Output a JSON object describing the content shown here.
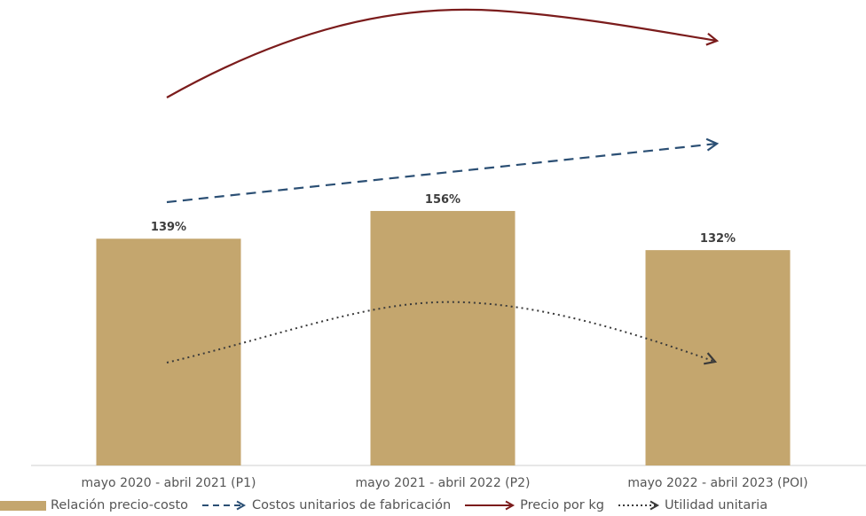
{
  "chart_data": {
    "type": "bar",
    "categories": [
      "mayo 2020 - abril 2021 (P1)",
      "mayo 2021 - abril 2022 (P2)",
      "mayo 2022 - abril 2023 (POI)"
    ],
    "series": [
      {
        "name": "Relación precio-costo",
        "type": "bar",
        "values": [
          139,
          156,
          132
        ],
        "labels": [
          "139%",
          "156%",
          "132%"
        ],
        "color": "#c4a66e"
      },
      {
        "name": "Costos unitarios de fabricación",
        "type": "trend-line",
        "style": "dashed",
        "color": "#2b4f74",
        "shape": "rising"
      },
      {
        "name": "Precio por kg",
        "type": "trend-line",
        "style": "solid",
        "color": "#7b1c1c",
        "shape": "rise-then-fall"
      },
      {
        "name": "Utilidad unitaria",
        "type": "trend-line",
        "style": "dotted",
        "color": "#3a3a3a",
        "shape": "rise-then-fall"
      }
    ],
    "title": "",
    "xlabel": "",
    "ylabel": "",
    "ylim": [
      0,
      180
    ],
    "grid": false,
    "legend_position": "bottom"
  },
  "colors": {
    "bar": "#c4a66e",
    "costs": "#2b4f74",
    "price": "#7b1c1c",
    "profit": "#3a3a3a",
    "axis": "#cfcfcf",
    "tick_text": "#555555",
    "bar_label": "#3d3d3d"
  }
}
